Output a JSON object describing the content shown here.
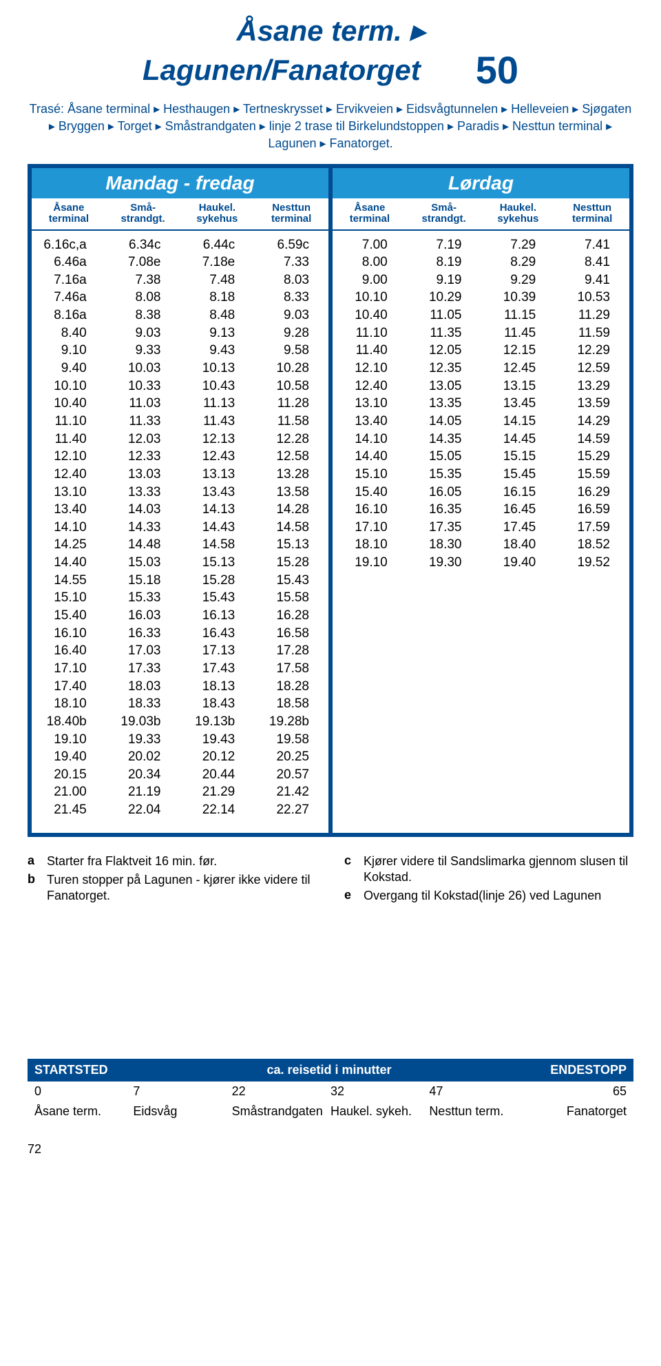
{
  "header": {
    "title1": "Åsane term. ▸",
    "title2": "Lagunen/Fanatorget",
    "route_number": "50"
  },
  "trase": "Trasé: Åsane terminal ▸ Hesthaugen ▸ Tertneskrysset ▸ Ervikveien ▸ Eidsvågtunnelen ▸ Helleveien ▸ Sjøgaten ▸ Bryggen ▸ Torget ▸ Småstrandgaten ▸ linje 2 trase til Birkelundstoppen ▸ Paradis ▸ Nesttun terminal ▸ Lagunen ▸ Fanatorget.",
  "days": {
    "left": "Mandag - fredag",
    "right": "Lørdag"
  },
  "columns": [
    {
      "l1": "Åsane",
      "l2": "terminal"
    },
    {
      "l1": "Små-",
      "l2": "strandgt."
    },
    {
      "l1": "Haukel.",
      "l2": "sykehus"
    },
    {
      "l1": "Nesttun",
      "l2": "terminal"
    }
  ],
  "weekday_rows": [
    [
      "6.16c,a",
      "6.34c",
      "6.44c",
      "6.59c"
    ],
    [
      "6.46a",
      "7.08e",
      "7.18e",
      "7.33"
    ],
    [
      "7.16a",
      "7.38",
      "7.48",
      "8.03"
    ],
    [
      "7.46a",
      "8.08",
      "8.18",
      "8.33"
    ],
    [
      "8.16a",
      "8.38",
      "8.48",
      "9.03"
    ],
    [
      "8.40",
      "9.03",
      "9.13",
      "9.28"
    ],
    [
      "9.10",
      "9.33",
      "9.43",
      "9.58"
    ],
    [
      "9.40",
      "10.03",
      "10.13",
      "10.28"
    ],
    [
      "10.10",
      "10.33",
      "10.43",
      "10.58"
    ],
    [
      "10.40",
      "11.03",
      "11.13",
      "11.28"
    ],
    [
      "11.10",
      "11.33",
      "11.43",
      "11.58"
    ],
    [
      "11.40",
      "12.03",
      "12.13",
      "12.28"
    ],
    [
      "12.10",
      "12.33",
      "12.43",
      "12.58"
    ],
    [
      "12.40",
      "13.03",
      "13.13",
      "13.28"
    ],
    [
      "13.10",
      "13.33",
      "13.43",
      "13.58"
    ],
    [
      "13.40",
      "14.03",
      "14.13",
      "14.28"
    ],
    [
      "14.10",
      "14.33",
      "14.43",
      "14.58"
    ],
    [
      "14.25",
      "14.48",
      "14.58",
      "15.13"
    ],
    [
      "14.40",
      "15.03",
      "15.13",
      "15.28"
    ],
    [
      "14.55",
      "15.18",
      "15.28",
      "15.43"
    ],
    [
      "15.10",
      "15.33",
      "15.43",
      "15.58"
    ],
    [
      "15.40",
      "16.03",
      "16.13",
      "16.28"
    ],
    [
      "16.10",
      "16.33",
      "16.43",
      "16.58"
    ],
    [
      "16.40",
      "17.03",
      "17.13",
      "17.28"
    ],
    [
      "17.10",
      "17.33",
      "17.43",
      "17.58"
    ],
    [
      "17.40",
      "18.03",
      "18.13",
      "18.28"
    ],
    [
      "18.10",
      "18.33",
      "18.43",
      "18.58"
    ],
    [
      "18.40b",
      "19.03b",
      "19.13b",
      "19.28b"
    ],
    [
      "19.10",
      "19.33",
      "19.43",
      "19.58"
    ],
    [
      "19.40",
      "20.02",
      "20.12",
      "20.25"
    ],
    [
      "20.15",
      "20.34",
      "20.44",
      "20.57"
    ],
    [
      "21.00",
      "21.19",
      "21.29",
      "21.42"
    ],
    [
      "21.45",
      "22.04",
      "22.14",
      "22.27"
    ]
  ],
  "saturday_rows": [
    [
      "7.00",
      "7.19",
      "7.29",
      "7.41"
    ],
    [
      "8.00",
      "8.19",
      "8.29",
      "8.41"
    ],
    [
      "9.00",
      "9.19",
      "9.29",
      "9.41"
    ],
    [
      "10.10",
      "10.29",
      "10.39",
      "10.53"
    ],
    [
      "10.40",
      "11.05",
      "11.15",
      "11.29"
    ],
    [
      "11.10",
      "11.35",
      "11.45",
      "11.59"
    ],
    [
      "11.40",
      "12.05",
      "12.15",
      "12.29"
    ],
    [
      "12.10",
      "12.35",
      "12.45",
      "12.59"
    ],
    [
      "12.40",
      "13.05",
      "13.15",
      "13.29"
    ],
    [
      "13.10",
      "13.35",
      "13.45",
      "13.59"
    ],
    [
      "13.40",
      "14.05",
      "14.15",
      "14.29"
    ],
    [
      "14.10",
      "14.35",
      "14.45",
      "14.59"
    ],
    [
      "14.40",
      "15.05",
      "15.15",
      "15.29"
    ],
    [
      "15.10",
      "15.35",
      "15.45",
      "15.59"
    ],
    [
      "15.40",
      "16.05",
      "16.15",
      "16.29"
    ],
    [
      "16.10",
      "16.35",
      "16.45",
      "16.59"
    ],
    [
      "17.10",
      "17.35",
      "17.45",
      "17.59"
    ],
    [
      "18.10",
      "18.30",
      "18.40",
      "18.52"
    ],
    [
      "19.10",
      "19.30",
      "19.40",
      "19.52"
    ]
  ],
  "notes": {
    "left": [
      {
        "key": "a",
        "text": "Starter fra Flaktveit 16 min. før."
      },
      {
        "key": "b",
        "text": "Turen stopper på Lagunen - kjører ikke videre til Fanatorget."
      }
    ],
    "right": [
      {
        "key": "c",
        "text": "Kjører videre til Sandslimarka gjennom slusen til Kokstad."
      },
      {
        "key": "e",
        "text": "Overgang til Kokstad(linje 26) ved Lagunen"
      }
    ]
  },
  "footer": {
    "bar": {
      "left": "STARTSTED",
      "mid": "ca. reisetid i minutter",
      "right": "ENDESTOPP"
    },
    "mins": [
      "0",
      "7",
      "22",
      "32",
      "47",
      "65"
    ],
    "stops": [
      "Åsane term.",
      "Eidsvåg",
      "Småstrandgaten",
      "Haukel. sykeh.",
      "Nesttun term.",
      "Fanatorget"
    ]
  },
  "page": "72"
}
